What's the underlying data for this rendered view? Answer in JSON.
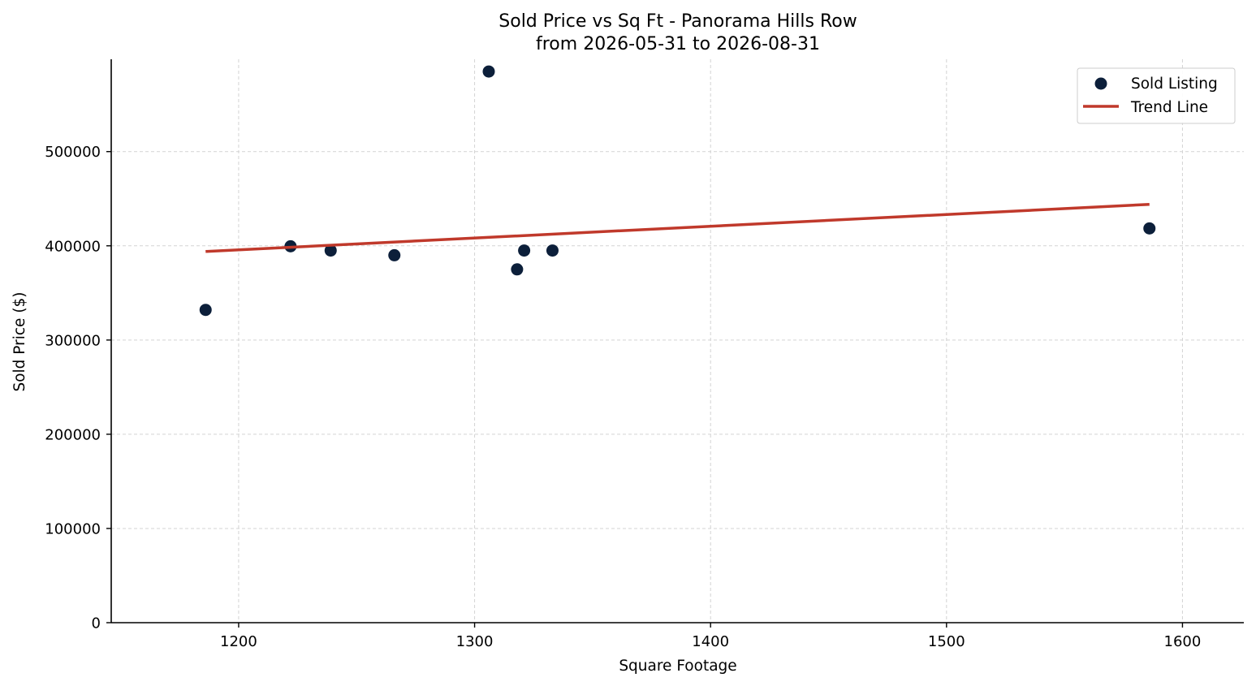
{
  "chart_data": {
    "type": "scatter",
    "title": "Sold Price vs Sq Ft - Panorama Hills Row",
    "subtitle": "from 2026-05-31 to 2026-08-31",
    "xlabel": "Square Footage",
    "ylabel": "Sold Price ($)",
    "xlim": [
      1146,
      1626
    ],
    "ylim": [
      0,
      598000
    ],
    "xticks": [
      1200,
      1300,
      1400,
      1500,
      1600
    ],
    "yticks": [
      0,
      100000,
      200000,
      300000,
      400000,
      500000
    ],
    "grid": true,
    "legend": {
      "placement": "top-right",
      "entries": [
        "Sold Listing",
        "Trend Line"
      ]
    },
    "colors": {
      "points": "#0c1f3a",
      "trend": "#c0392b"
    },
    "series": [
      {
        "name": "Sold Listing",
        "kind": "scatter",
        "points": [
          {
            "x": 1186,
            "y": 332000
          },
          {
            "x": 1222,
            "y": 399500
          },
          {
            "x": 1239,
            "y": 395000
          },
          {
            "x": 1266,
            "y": 390000
          },
          {
            "x": 1306,
            "y": 585000
          },
          {
            "x": 1318,
            "y": 375000
          },
          {
            "x": 1321,
            "y": 395000
          },
          {
            "x": 1333,
            "y": 395000
          },
          {
            "x": 1586,
            "y": 418500
          }
        ]
      },
      {
        "name": "Trend Line",
        "kind": "line",
        "points": [
          {
            "x": 1186,
            "y": 394000
          },
          {
            "x": 1586,
            "y": 444000
          }
        ]
      }
    ]
  }
}
